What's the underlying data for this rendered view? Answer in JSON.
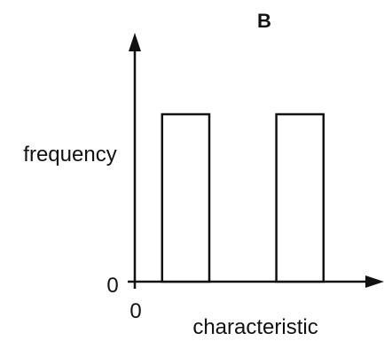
{
  "chart_data": {
    "type": "bar",
    "title": "B",
    "xlabel": "characteristic",
    "ylabel": "frequency",
    "x_origin_label": "0",
    "y_origin_label": "0",
    "xlim": [
      0,
      10
    ],
    "ylim": [
      0,
      10
    ],
    "bars": [
      {
        "x_start": 1.1,
        "x_end": 3.0,
        "value": 7
      },
      {
        "x_start": 5.7,
        "x_end": 7.6,
        "value": 7
      }
    ],
    "colors": {
      "stroke": "#111111",
      "fill": "#ffffff"
    },
    "grid": false
  }
}
